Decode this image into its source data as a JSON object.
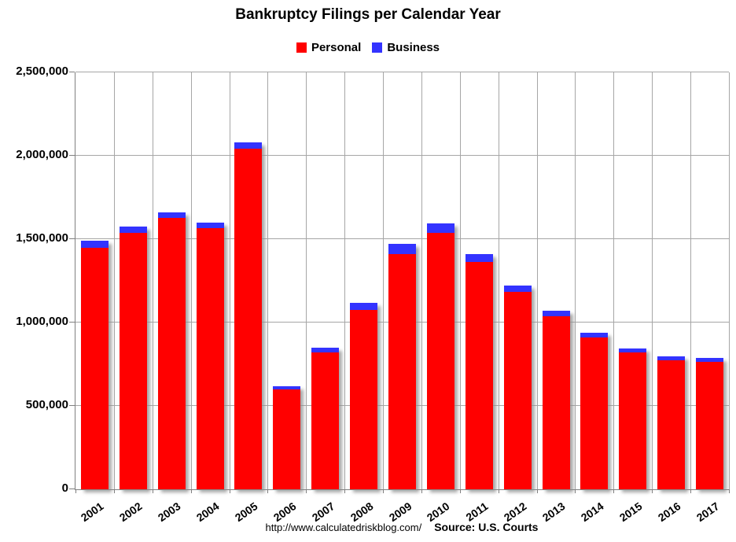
{
  "footer": {
    "url": "http://www.calculatedriskblog.com/",
    "source": "Source: U.S. Courts"
  },
  "colors": {
    "personal": "#ff0000",
    "business": "#3333ff",
    "gridline": "#a6a6a6",
    "axis": "#808080"
  },
  "chart_data": {
    "type": "bar",
    "stacked": true,
    "title": "Bankruptcy Filings per Calendar Year",
    "xlabel": "",
    "ylabel": "",
    "grid": true,
    "legend_position": "top-center",
    "ylim": [
      0,
      2500000
    ],
    "ytick_interval": 500000,
    "ytick_labels": [
      "0",
      "500,000",
      "1,000,000",
      "1,500,000",
      "2,000,000",
      "2,500,000"
    ],
    "categories": [
      "2001",
      "2002",
      "2003",
      "2004",
      "2005",
      "2006",
      "2007",
      "2008",
      "2009",
      "2010",
      "2011",
      "2012",
      "2013",
      "2014",
      "2015",
      "2016",
      "2017"
    ],
    "series": [
      {
        "name": "Personal",
        "color": "#ff0000",
        "values": [
          1452030,
          1539111,
          1625208,
          1563145,
          2039214,
          597965,
          822590,
          1074225,
          1412838,
          1536799,
          1362847,
          1181016,
          1038720,
          909812,
          819760,
          770846,
          765863
        ]
      },
      {
        "name": "Business",
        "color": "#3333ff",
        "values": [
          40099,
          38540,
          35037,
          34317,
          39201,
          19695,
          28322,
          43546,
          60837,
          56282,
          47806,
          40075,
          33212,
          26983,
          24735,
          24114,
          23157
        ]
      }
    ]
  }
}
